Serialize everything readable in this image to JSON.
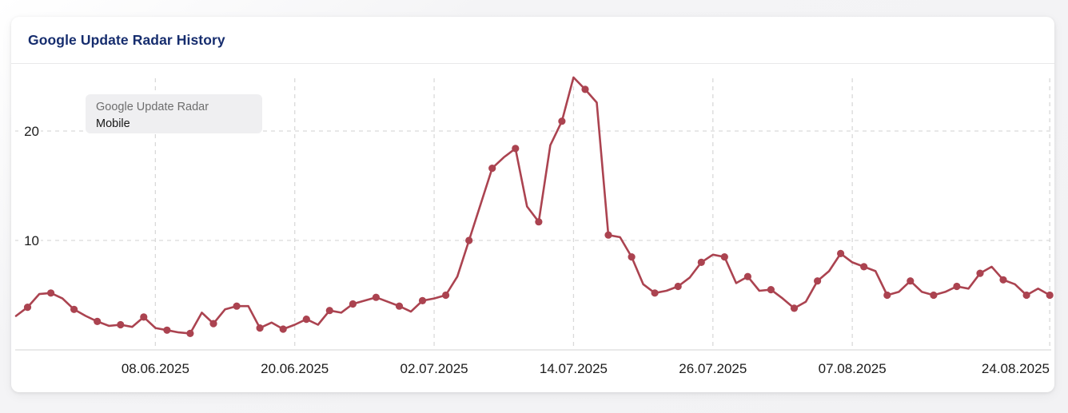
{
  "card": {
    "title": "Google Update Radar History"
  },
  "tooltip": {
    "series_label": "Google Update Radar",
    "value_label": "Mobile"
  },
  "chart_data": {
    "type": "line",
    "title": "Google Update Radar History",
    "series": [
      {
        "name": "Google Update Radar",
        "device": "Mobile",
        "values": [
          3.1,
          3.9,
          5.1,
          5.2,
          4.7,
          3.7,
          3.1,
          2.6,
          2.2,
          2.3,
          2.1,
          3.0,
          2.0,
          1.8,
          1.6,
          1.5,
          3.4,
          2.4,
          3.7,
          4.0,
          4.0,
          2.0,
          2.5,
          1.9,
          2.3,
          2.8,
          2.3,
          3.6,
          3.4,
          4.2,
          4.5,
          4.8,
          4.4,
          4.0,
          3.5,
          4.5,
          4.7,
          5.0,
          6.7,
          10.0,
          13.3,
          16.6,
          17.6,
          18.4,
          13.1,
          11.7,
          18.7,
          20.9,
          24.9,
          23.8,
          22.6,
          10.5,
          10.3,
          8.5,
          6.0,
          5.2,
          5.4,
          5.8,
          6.6,
          8.0,
          8.7,
          8.5,
          6.1,
          6.7,
          5.4,
          5.5,
          4.7,
          3.8,
          4.4,
          6.3,
          7.2,
          8.8,
          8.0,
          7.6,
          7.2,
          5.0,
          5.3,
          6.3,
          5.3,
          5.0,
          5.3,
          5.8,
          5.6,
          7.0,
          7.6,
          6.4,
          6.0,
          5.0,
          5.6,
          5.0
        ]
      }
    ],
    "x_start_date": "27.05.2025",
    "x_end_date": "24.08.2025",
    "x_interval_days": 1,
    "x_tick_labels": [
      "08.06.2025",
      "20.06.2025",
      "02.07.2025",
      "14.07.2025",
      "26.07.2025",
      "07.08.2025",
      "24.08.2025"
    ],
    "x_tick_indices": [
      12,
      24,
      36,
      48,
      60,
      72,
      89
    ],
    "y_ticks": [
      10,
      20
    ],
    "ylim": [
      0,
      26
    ],
    "marker_start_index": 1,
    "marker_step": 2,
    "grid": true,
    "legend_position": "tooltip-top-left",
    "line_color": "#ab4350",
    "marker_color": "#ab4350",
    "grid_color": "#d9d9d9",
    "axis_line_color": "#e2e2e2",
    "axis_text_color": "#1c1c1c"
  }
}
